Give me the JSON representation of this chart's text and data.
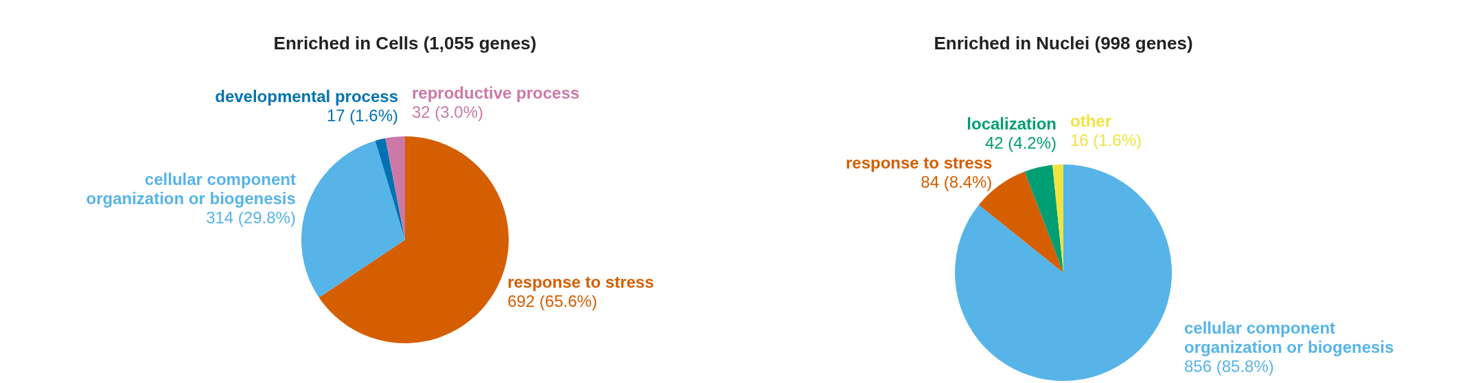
{
  "chart_data": [
    {
      "type": "pie",
      "title": "Enriched in Cells (1,055 genes)",
      "categories": [
        "response to stress",
        "cellular component organization or biogenesis",
        "developmental process",
        "reproductive process"
      ],
      "values": [
        692,
        314,
        17,
        32
      ],
      "colors": [
        "#d55e00",
        "#56b4e9",
        "#0072b2",
        "#cc79a7"
      ],
      "value_labels": [
        "692 (65.6%)",
        "314 (29.8%)",
        "17 (1.6%)",
        "32 (3.0%)"
      ]
    },
    {
      "type": "pie",
      "title": "Enriched in Nuclei (998 genes)",
      "categories": [
        "cellular component organization or biogenesis",
        "response to stress",
        "localization",
        "other"
      ],
      "values": [
        856,
        84,
        42,
        16
      ],
      "colors": [
        "#56b4e9",
        "#d55e00",
        "#009e73",
        "#f0e442"
      ],
      "value_labels": [
        "856 (85.8%)",
        "84 (8.4%)",
        "42 (4.2%)",
        "16 (1.6%)"
      ]
    }
  ]
}
